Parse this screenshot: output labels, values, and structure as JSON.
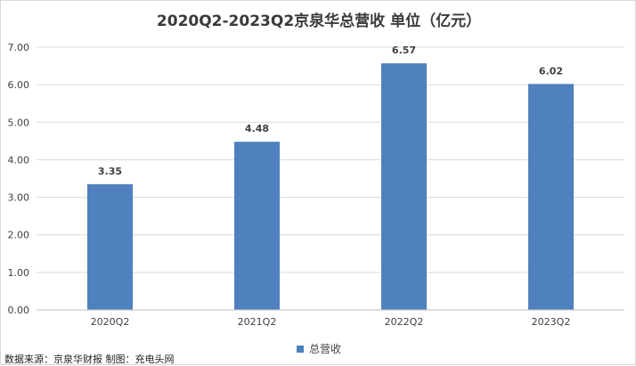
{
  "chart_data": {
    "type": "bar",
    "title": "2020Q2-2023Q2京泉华总营收 单位（亿元）",
    "categories": [
      "2020Q2",
      "2021Q2",
      "2022Q2",
      "2023Q2"
    ],
    "series": [
      {
        "name": "总营收",
        "values": [
          3.35,
          4.48,
          6.57,
          6.02
        ],
        "color": "#4e81bd"
      }
    ],
    "data_labels": [
      "3.35",
      "4.48",
      "6.57",
      "6.02"
    ],
    "y_ticks": [
      "0.00",
      "1.00",
      "2.00",
      "3.00",
      "4.00",
      "5.00",
      "6.00",
      "7.00"
    ],
    "ylim": [
      0,
      7
    ],
    "grid": true,
    "legend_position": "bottom",
    "source_note": "数据来源：京泉华财报  制图：充电头网"
  }
}
